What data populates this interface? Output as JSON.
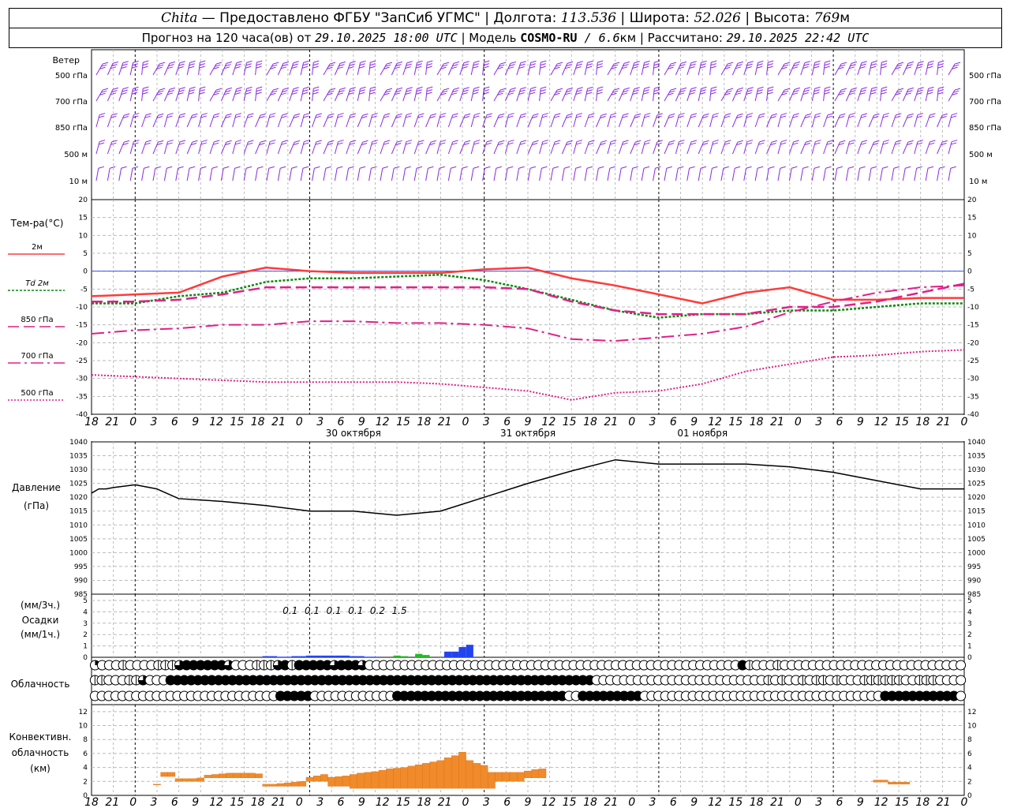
{
  "header": {
    "line1": {
      "station": "Chita",
      "dash": " — ",
      "provider": "Предоставлено ФГБУ \"ЗапСиб УГМС\"",
      "lon_label": " | Долгота: ",
      "lon": "113.536",
      "lat_label": " | Широта: ",
      "lat": "52.026",
      "alt_label": " | Высота: ",
      "alt": "769",
      "alt_unit": "м"
    },
    "line2": {
      "forecast_label": "Прогноз на 120 часа(ов) от ",
      "start": "29.10.2025 18:00 UTC",
      "model_label": "  | Модель ",
      "model": "COSMO-RU",
      "res_sep": " / ",
      "res": "6.6",
      "res_unit": "км",
      "calc_label": " | Рассчитано: ",
      "calc": "29.10.2025 22:42 UTC"
    }
  },
  "chart_data": [
    {
      "type": "wind_barbs",
      "title": "Ветер",
      "levels": [
        "500 гПа",
        "700 гПа",
        "850 гПа",
        "500 м",
        "10 м"
      ],
      "color": "#8a2be2"
    },
    {
      "type": "line",
      "title": "Тем-ра(°C)",
      "ylim": [
        -40,
        20
      ],
      "yticks": [
        20,
        15,
        10,
        5,
        0,
        -5,
        -10,
        -15,
        -20,
        -25,
        -30,
        -35,
        -40
      ],
      "x_hours": [
        0,
        6,
        12,
        18,
        24,
        30,
        36,
        42,
        48,
        54,
        60,
        66,
        72,
        78,
        84,
        90,
        96,
        102,
        108,
        114,
        120
      ],
      "series": [
        {
          "name": "2м",
          "color": "#ff3b3b",
          "style": "solid",
          "values": [
            -7,
            -6.5,
            -6,
            -1.5,
            1,
            0,
            -0.5,
            -0.5,
            -0.5,
            0.5,
            1,
            -2,
            -4,
            -6.5,
            -9,
            -6,
            -4.5,
            -8,
            -8,
            -7.5,
            -7.5
          ]
        },
        {
          "name": "Td 2м",
          "color": "#0a8a0a",
          "style": "dotted",
          "values": [
            -9,
            -9,
            -7,
            -6,
            -3,
            -2,
            -2,
            -1.5,
            -1,
            -2.5,
            -5,
            -8,
            -11,
            -13,
            -12,
            -12,
            -11,
            -11,
            -10,
            -9,
            -9
          ]
        },
        {
          "name": "850 гПа",
          "color": "#e0208a",
          "style": "dashed",
          "values": [
            -8.5,
            -8.5,
            -8,
            -6.5,
            -4.5,
            -4.5,
            -4.5,
            -4.5,
            -4.5,
            -4.5,
            -5,
            -8.5,
            -11,
            -12,
            -12,
            -12,
            -10,
            -10,
            -8.5,
            -6,
            -3.5
          ]
        },
        {
          "name": "700 гПа",
          "color": "#e0208a",
          "style": "dashdot",
          "values": [
            -17.5,
            -16.5,
            -16,
            -15,
            -15,
            -14,
            -14,
            -14.5,
            -14.5,
            -15,
            -16,
            -19,
            -19.5,
            -18.5,
            -17.5,
            -15.5,
            -11.5,
            -8.5,
            -6,
            -4.5,
            -4
          ]
        },
        {
          "name": "500 гПа",
          "color": "#e0208a",
          "style": "fine-dotted",
          "values": [
            -29,
            -29.5,
            -30,
            -30.5,
            -31,
            -31,
            -31,
            -31,
            -31.5,
            -32.5,
            -33.5,
            -36,
            -34,
            -33.5,
            -31.5,
            -28,
            -26,
            -24,
            -23.5,
            -22.5,
            -22
          ]
        }
      ]
    },
    {
      "type": "line",
      "title": "Давление",
      "ylabel": "(гПа)",
      "ylim": [
        985,
        1040
      ],
      "yticks": [
        1040,
        1035,
        1030,
        1025,
        1020,
        1015,
        1010,
        1005,
        1000,
        995,
        990,
        985
      ],
      "x_hours": [
        0,
        1,
        2,
        3,
        6,
        9,
        12,
        18,
        24,
        30,
        36,
        42,
        48,
        54,
        60,
        66,
        72,
        78,
        84,
        90,
        96,
        102,
        108,
        114,
        120
      ],
      "values": [
        1021.5,
        1023,
        1023,
        1023.5,
        1024.5,
        1023,
        1019.5,
        1018.5,
        1017,
        1015,
        1015,
        1013.5,
        1015,
        1020,
        1025,
        1029.5,
        1033.5,
        1032,
        1032,
        1032,
        1031,
        1029,
        1026,
        1023,
        1023
      ],
      "color": "#000000"
    },
    {
      "type": "bar",
      "title": "Осадки",
      "ylabel_top": "(мм/3ч.)",
      "ylabel_bottom": "(мм/1ч.)",
      "ylim": [
        0,
        5
      ],
      "yticks": [
        5,
        4,
        3,
        2,
        1,
        0
      ],
      "x_hours": [
        24,
        25,
        26,
        27,
        28,
        29,
        30,
        31,
        32,
        33,
        34,
        35,
        36,
        37,
        38,
        39,
        40,
        41,
        42,
        43,
        44,
        45,
        46,
        47,
        48,
        49,
        50,
        51,
        52,
        53
      ],
      "values": [
        0.1,
        0.1,
        0.05,
        0.05,
        0.1,
        0.1,
        0.15,
        0.15,
        0.15,
        0.15,
        0.15,
        0.15,
        0.1,
        0.1,
        0.05,
        0.05,
        0,
        0,
        0.15,
        0.1,
        0,
        0.3,
        0.2,
        0,
        0,
        0.5,
        0.5,
        0.9,
        1.1,
        0
      ],
      "colors": [
        "blue",
        "blue",
        "blue",
        "blue",
        "blue",
        "blue",
        "blue",
        "blue",
        "blue",
        "blue",
        "blue",
        "blue",
        "blue",
        "blue",
        "blue",
        "blue",
        "blue",
        "blue",
        "green",
        "green",
        "green",
        "green",
        "green",
        "green",
        "green",
        "blue",
        "blue",
        "blue",
        "blue",
        "blue"
      ],
      "totals_3h": [
        {
          "x_hour": 27,
          "label": "0.1"
        },
        {
          "x_hour": 30,
          "label": "0.1"
        },
        {
          "x_hour": 33,
          "label": "0.1"
        },
        {
          "x_hour": 36,
          "label": "0.1"
        },
        {
          "x_hour": 39,
          "label": "0.2"
        },
        {
          "x_hour": 42,
          "label": "1.5"
        }
      ]
    },
    {
      "type": "cloud_symbols",
      "title": "Облачность",
      "rows": [
        "pqqqhqqqqhhhtfffffftqqqhhhtfhffffftffftqqqqqqqqqqqqqqqqqqqqqqqqqqqqqqqqqqqqqqqqqqqqqqqqqqqqqfhqqqhqqqqqqqqqqqqqqqqqqqqqqqqqq",
        "hhqqqhhtqqqffffffffffffffffffffffffffffffffffffffffffffffffffffffffffffffqqqqqqqqqqqqqqqqqqqqqqqqqhqhqqhqhhqhqqqhhhhhhqqhhhqqqq",
        "qqqqqqqqqqqqqqqqqqqqqqqqqqqfffffqqqqqqqqqqqqfffffffffffffffffffffffffqqfffffffffqqqqqqqqqqqqqqqqqqqqqqqqqqqqqqqqqqqfffffffffffq"
      ]
    },
    {
      "type": "bar",
      "title": "Конвективн. облачность",
      "ylabel": "(км)",
      "ylim": [
        0,
        12
      ],
      "yticks": [
        12,
        10,
        8,
        6,
        4,
        2,
        0
      ],
      "color": "#f08a2a",
      "x_hours": [
        9,
        10,
        11,
        12,
        13,
        14,
        15,
        16,
        17,
        18,
        19,
        20,
        21,
        22,
        23,
        24,
        25,
        26,
        27,
        28,
        29,
        30,
        31,
        32,
        33,
        34,
        35,
        36,
        37,
        38,
        39,
        40,
        41,
        42,
        43,
        44,
        45,
        46,
        47,
        48,
        49,
        50,
        51,
        52,
        53,
        54,
        55,
        56,
        57,
        58,
        59,
        60,
        61,
        62,
        108,
        109,
        110,
        111,
        112
      ],
      "bases": [
        1.5,
        2.7,
        2.7,
        2,
        2,
        2,
        2,
        2.5,
        2.5,
        2.5,
        2.5,
        2.5,
        2.5,
        2.5,
        2.5,
        1.3,
        1.3,
        1.3,
        1.3,
        1.3,
        1.3,
        2,
        2,
        2,
        1.3,
        1.3,
        1.3,
        1,
        1,
        1,
        1,
        1,
        1,
        1,
        1,
        1,
        1,
        1,
        1,
        1,
        1,
        1,
        1,
        1,
        1,
        1,
        1,
        2,
        2,
        2,
        2,
        2.5,
        2.5,
        2.5,
        1.9,
        1.9,
        1.6,
        1.6,
        1.6
      ],
      "tops": [
        1.6,
        3.3,
        3.3,
        2.4,
        2.4,
        2.4,
        2.5,
        2.9,
        3,
        3.1,
        3.2,
        3.2,
        3.2,
        3.2,
        3.1,
        1.6,
        1.6,
        1.7,
        1.8,
        1.9,
        2,
        2.6,
        2.8,
        3,
        2.6,
        2.7,
        2.8,
        3,
        3.2,
        3.3,
        3.4,
        3.6,
        3.8,
        3.9,
        4,
        4.2,
        4.4,
        4.6,
        4.8,
        5,
        5.4,
        5.7,
        6.2,
        5,
        4.6,
        4.3,
        3.3,
        3.3,
        3.3,
        3.3,
        3.3,
        3.5,
        3.7,
        3.8,
        2.2,
        2.2,
        1.9,
        1.9,
        1.9
      ]
    }
  ],
  "axis": {
    "hour_labels": [
      "18",
      "21",
      "0",
      "3",
      "6",
      "9",
      "12",
      "15",
      "18",
      "21",
      "0",
      "3",
      "6",
      "9",
      "12",
      "15",
      "18",
      "21",
      "0",
      "3",
      "6",
      "9",
      "12",
      "15",
      "18",
      "21",
      "0",
      "3",
      "6",
      "9",
      "12",
      "15",
      "18",
      "21",
      "0",
      "3",
      "6",
      "9",
      "12",
      "15",
      "18",
      "21",
      "0"
    ],
    "date_labels": [
      {
        "x_hour": 54,
        "label": "30 октября"
      },
      {
        "x_hour": 78,
        "label": "31 октября"
      },
      {
        "x_hour": 102,
        "label": "01 ноября"
      }
    ]
  }
}
